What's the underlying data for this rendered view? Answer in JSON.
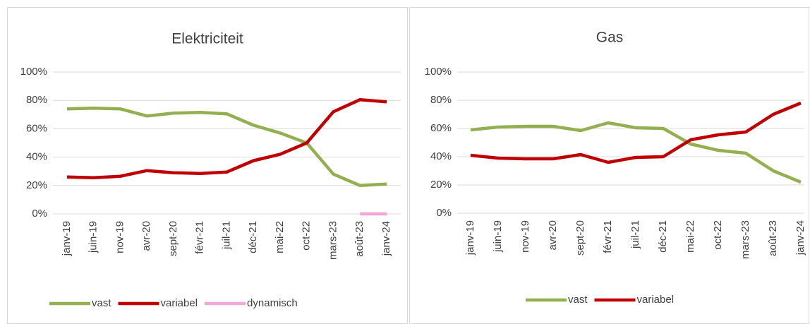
{
  "chart_data": [
    {
      "type": "line",
      "title": "Elektriciteit",
      "categories": [
        "janv-19",
        "juin-19",
        "nov-19",
        "avr-20",
        "sept-20",
        "févr-21",
        "juil-21",
        "déc-21",
        "mai-22",
        "oct-22",
        "mars-23",
        "août-23",
        "janv-24"
      ],
      "series": [
        {
          "name": "vast",
          "color": "#92b050",
          "values": [
            74,
            74.5,
            74,
            69,
            71,
            71.5,
            70.5,
            62.5,
            57,
            50,
            28,
            20,
            21
          ]
        },
        {
          "name": "variabel",
          "color": "#c00000",
          "values": [
            26,
            25.5,
            26.5,
            30.5,
            29,
            28.5,
            29.5,
            37.5,
            42,
            50,
            72,
            80.5,
            79
          ]
        },
        {
          "name": "dynamisch",
          "color": "#f4a6d7",
          "values": [
            null,
            null,
            null,
            null,
            null,
            null,
            null,
            null,
            null,
            null,
            null,
            0,
            0
          ]
        }
      ],
      "ylim": [
        0,
        100
      ],
      "yticks": [
        {
          "value": 0,
          "label": "0%"
        },
        {
          "value": 20,
          "label": "20%"
        },
        {
          "value": 40,
          "label": "40%"
        },
        {
          "value": 60,
          "label": "60%"
        },
        {
          "value": 80,
          "label": "80%"
        },
        {
          "value": 100,
          "label": "100%"
        }
      ],
      "grid": true,
      "legend": "bottom"
    },
    {
      "type": "line",
      "title": "Gas",
      "categories": [
        "janv-19",
        "juin-19",
        "nov-19",
        "avr-20",
        "sept-20",
        "févr-21",
        "juil-21",
        "déc-21",
        "mai-22",
        "oct-22",
        "mars-23",
        "août-23",
        "janv-24"
      ],
      "series": [
        {
          "name": "vast",
          "color": "#92b050",
          "values": [
            59,
            61,
            61.5,
            61.5,
            58.5,
            64,
            60.5,
            60,
            49,
            44.5,
            42.5,
            30,
            22
          ]
        },
        {
          "name": "variabel",
          "color": "#c00000",
          "values": [
            41,
            39,
            38.5,
            38.5,
            41.5,
            36,
            39.5,
            40,
            52,
            55.5,
            57.5,
            70,
            78
          ]
        }
      ],
      "ylim": [
        0,
        100
      ],
      "yticks": [
        {
          "value": 0,
          "label": "0%"
        },
        {
          "value": 20,
          "label": "20%"
        },
        {
          "value": 40,
          "label": "40%"
        },
        {
          "value": 60,
          "label": "60%"
        },
        {
          "value": 80,
          "label": "80%"
        },
        {
          "value": 100,
          "label": "100%"
        }
      ],
      "grid": true,
      "legend": "bottom"
    }
  ]
}
